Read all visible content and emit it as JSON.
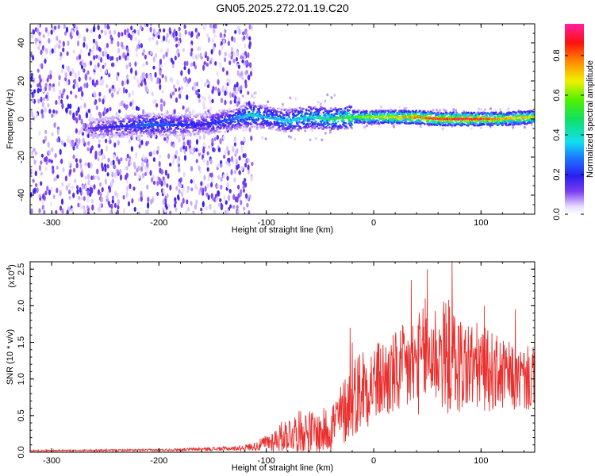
{
  "title": "GN05.2025.272.01.19.C20",
  "colorbar": {
    "label": "Normalized spectral amplitude",
    "ticks": [
      "0.0",
      "0.2",
      "0.4",
      "0.6",
      "0.8"
    ],
    "tick_values": [
      0.0,
      0.2,
      0.4,
      0.6,
      0.8
    ],
    "range": [
      0,
      0.96
    ]
  },
  "chart_data": [
    {
      "type": "heatmap",
      "name": "spectrogram",
      "xlabel": "Height of straight line (km)",
      "ylabel": "Frequency (Hz)",
      "xlim": [
        -320,
        150
      ],
      "ylim": [
        -50,
        50
      ],
      "xticks": [
        -300,
        -200,
        -100,
        0,
        100
      ],
      "xtick_labels": [
        "-300",
        "-200",
        "-100",
        "0",
        "100"
      ],
      "yticks": [
        -40,
        -20,
        0,
        20,
        40
      ],
      "ytick_labels": [
        "-40",
        "-20",
        "0",
        "20",
        "40"
      ],
      "noise_region_x": [
        -320,
        -125
      ],
      "ridge": {
        "x": [
          -265,
          -240,
          -210,
          -185,
          -160,
          -130,
          -115,
          -100,
          -80,
          -60,
          -40,
          -20,
          0,
          20,
          40,
          60,
          80,
          100,
          120,
          150
        ],
        "center_freq": [
          -5,
          -4,
          -3,
          -3,
          -3,
          0,
          2,
          1,
          -1,
          1,
          0,
          1,
          1,
          1,
          1,
          0,
          0,
          0,
          0,
          1
        ],
        "amplitude": [
          0.15,
          0.2,
          0.3,
          0.25,
          0.2,
          0.3,
          0.45,
          0.35,
          0.4,
          0.45,
          0.5,
          0.6,
          0.7,
          0.75,
          0.85,
          0.9,
          0.95,
          0.9,
          0.8,
          0.75
        ]
      }
    },
    {
      "type": "line",
      "name": "snr",
      "xlabel": "Height of straight line (km)",
      "ylabel": "SNR (10 * v/v)",
      "multiplier_label": "(x10",
      "multiplier_exp": "4",
      "multiplier_close": ")",
      "color": "#e8312f",
      "xlim": [
        -320,
        150
      ],
      "ylim": [
        0,
        2.6
      ],
      "xticks": [
        -300,
        -200,
        -100,
        0,
        100
      ],
      "xtick_labels": [
        "-300",
        "-200",
        "-100",
        "0",
        "100"
      ],
      "yticks": [
        0,
        0.5,
        1.0,
        1.5,
        2.0,
        2.5
      ],
      "ytick_labels": [
        "0.0",
        "0.5",
        "1.0",
        "1.5",
        "2.0",
        "2.5"
      ],
      "envelope": {
        "x": [
          -320,
          -200,
          -130,
          -110,
          -95,
          -80,
          -65,
          -50,
          -40,
          -30,
          -20,
          -10,
          0,
          20,
          40,
          55,
          70,
          80,
          100,
          120,
          135,
          150
        ],
        "mean": [
          0.02,
          0.03,
          0.05,
          0.08,
          0.15,
          0.25,
          0.3,
          0.25,
          0.35,
          0.5,
          0.75,
          0.9,
          0.95,
          1.05,
          1.2,
          1.35,
          1.3,
          1.2,
          1.15,
          1.05,
          1.0,
          1.0
        ],
        "spread": [
          0.01,
          0.015,
          0.03,
          0.06,
          0.15,
          0.25,
          0.3,
          0.3,
          0.35,
          0.45,
          0.55,
          0.6,
          0.55,
          0.6,
          0.7,
          0.75,
          0.8,
          0.7,
          0.6,
          0.5,
          0.45,
          0.45
        ]
      },
      "peak_values": [
        {
          "x": 50,
          "y": 2.5
        },
        {
          "x": 73,
          "y": 2.6
        },
        {
          "x": 35,
          "y": 2.35
        },
        {
          "x": 48,
          "y": 2.1
        },
        {
          "x": -22,
          "y": 1.7
        },
        {
          "x": -20,
          "y": 1.5
        },
        {
          "x": 103,
          "y": 2.0
        },
        {
          "x": 132,
          "y": 1.95
        }
      ]
    }
  ]
}
